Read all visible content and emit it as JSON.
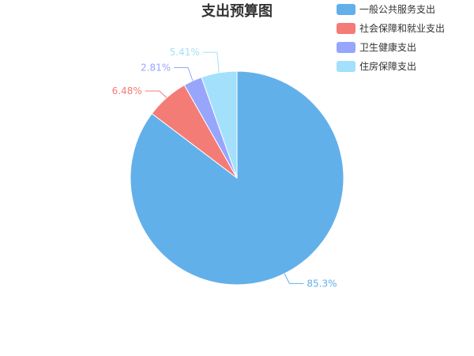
{
  "chart_data": {
    "type": "pie",
    "title": "支出预算图",
    "legend_position": "top-right",
    "series": [
      {
        "name": "一般公共服务支出",
        "value": 85.3,
        "label": "85.3%",
        "color": "#62b0ea"
      },
      {
        "name": "社会保障和就业支出",
        "value": 6.48,
        "label": "6.48%",
        "color": "#f47c77"
      },
      {
        "name": "卫生健康支出",
        "value": 2.81,
        "label": "2.81%",
        "color": "#97a6fb"
      },
      {
        "name": "住房保障支出",
        "value": 5.41,
        "label": "5.41%",
        "color": "#a3e0fb"
      }
    ]
  }
}
